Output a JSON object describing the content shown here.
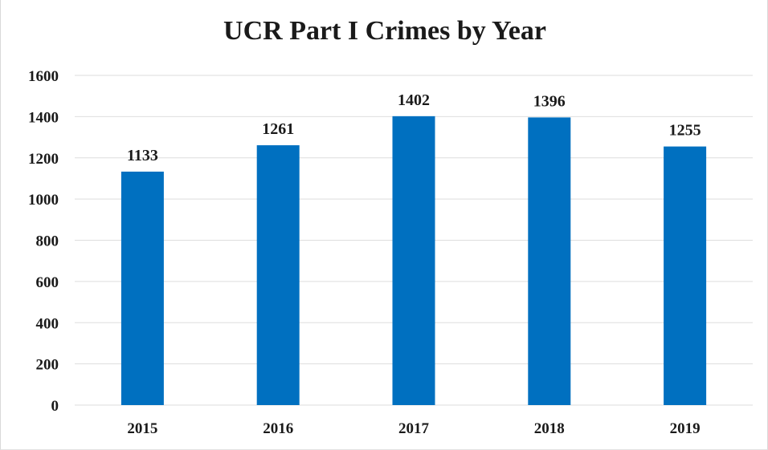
{
  "chart_data": {
    "type": "bar",
    "title": "UCR Part I Crimes by Year",
    "xlabel": "",
    "ylabel": "",
    "categories": [
      "2015",
      "2016",
      "2017",
      "2018",
      "2019"
    ],
    "values": [
      1133,
      1261,
      1402,
      1396,
      1255
    ],
    "data_labels": [
      "1133",
      "1261",
      "1402",
      "1396",
      "1255"
    ],
    "ylim": [
      0,
      1600
    ],
    "yticks": [
      0,
      200,
      400,
      600,
      800,
      1000,
      1200,
      1400,
      1600
    ],
    "ytick_labels": [
      "0",
      "200",
      "400",
      "600",
      "800",
      "1000",
      "1200",
      "1400",
      "1600"
    ],
    "grid": true,
    "legend": "none",
    "bar_color": "#0070c0"
  }
}
